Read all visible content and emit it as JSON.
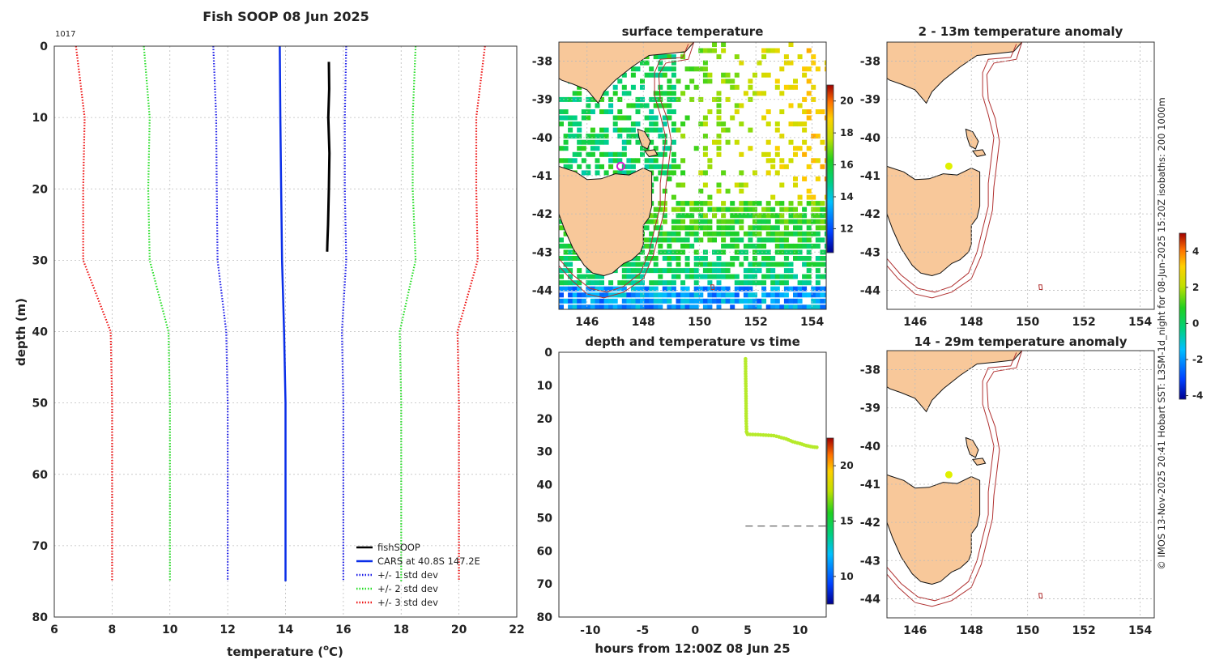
{
  "main_title": "Fish SOOP 08 Jun 2025",
  "profile_id": "1017",
  "colors": {
    "obs": "#000000",
    "mean": "#0a2ee8",
    "std1": "#1a1ae8",
    "std2": "#22dd22",
    "std3": "#ee1111",
    "land": "#f8c89a",
    "coast": "#111111",
    "iso": "#b03030",
    "marker": "#e0f000"
  },
  "chart_data": [
    {
      "type": "line",
      "title": "",
      "xlabel": "temperature (",
      "xlabel_super": "o",
      "xlabel_tail": "C)",
      "ylabel": "depth (m)",
      "xlim": [
        6,
        22
      ],
      "ylim": [
        0,
        80
      ],
      "xticks": [
        "6",
        "8",
        "10",
        "12",
        "14",
        "16",
        "18",
        "20",
        "22"
      ],
      "yticks": [
        "0",
        "10",
        "20",
        "30",
        "40",
        "50",
        "60",
        "70",
        "80"
      ],
      "legend": [
        "fishSOOP",
        "CARS at 40.8S 147.2E",
        "+/- 1 std dev",
        "+/- 2 std dev",
        "+/- 3 std dev"
      ],
      "series": [
        {
          "name": "fishSOOP",
          "points": [
            [
              15.5,
              2.2
            ],
            [
              15.51,
              6
            ],
            [
              15.48,
              10
            ],
            [
              15.52,
              15
            ],
            [
              15.5,
              20
            ],
            [
              15.47,
              25
            ],
            [
              15.45,
              27.5
            ],
            [
              15.44,
              28.8
            ]
          ]
        },
        {
          "name": "CARS",
          "points": [
            [
              13.8,
              0
            ],
            [
              13.82,
              10
            ],
            [
              13.85,
              20
            ],
            [
              13.88,
              30
            ],
            [
              13.95,
              40
            ],
            [
              14.0,
              50
            ],
            [
              14.0,
              60
            ],
            [
              14.0,
              70
            ],
            [
              14.0,
              75
            ]
          ]
        },
        {
          "name": "mean-1sd",
          "points": [
            [
              11.5,
              0
            ],
            [
              11.6,
              10
            ],
            [
              11.62,
              20
            ],
            [
              11.65,
              30
            ],
            [
              11.95,
              40
            ],
            [
              12.0,
              50
            ],
            [
              12.0,
              60
            ],
            [
              12.0,
              70
            ],
            [
              12.0,
              75
            ]
          ]
        },
        {
          "name": "mean+1sd",
          "points": [
            [
              16.1,
              0
            ],
            [
              16.05,
              10
            ],
            [
              16.05,
              20
            ],
            [
              16.1,
              30
            ],
            [
              15.95,
              40
            ],
            [
              16.0,
              50
            ],
            [
              16.0,
              60
            ],
            [
              16.0,
              70
            ],
            [
              16.0,
              75
            ]
          ]
        },
        {
          "name": "mean-2sd",
          "points": [
            [
              9.1,
              0
            ],
            [
              9.3,
              10
            ],
            [
              9.25,
              20
            ],
            [
              9.3,
              30
            ],
            [
              9.95,
              40
            ],
            [
              10.0,
              50
            ],
            [
              10.0,
              60
            ],
            [
              10.0,
              70
            ],
            [
              10.0,
              75
            ]
          ]
        },
        {
          "name": "mean+2sd",
          "points": [
            [
              18.5,
              0
            ],
            [
              18.4,
              10
            ],
            [
              18.4,
              20
            ],
            [
              18.5,
              30
            ],
            [
              17.95,
              40
            ],
            [
              18.0,
              50
            ],
            [
              18.0,
              60
            ],
            [
              18.0,
              70
            ],
            [
              18.0,
              75
            ]
          ]
        },
        {
          "name": "mean-3sd",
          "points": [
            [
              6.75,
              0
            ],
            [
              7.05,
              10
            ],
            [
              7.0,
              20
            ],
            [
              7.0,
              30
            ],
            [
              7.95,
              40
            ],
            [
              8.0,
              50
            ],
            [
              8.0,
              60
            ],
            [
              8.0,
              70
            ],
            [
              8.0,
              75
            ]
          ]
        },
        {
          "name": "mean+3sd",
          "points": [
            [
              20.9,
              0
            ],
            [
              20.6,
              10
            ],
            [
              20.6,
              20
            ],
            [
              20.65,
              30
            ],
            [
              19.95,
              40
            ],
            [
              20.0,
              50
            ],
            [
              20.0,
              60
            ],
            [
              20.0,
              70
            ],
            [
              20.0,
              75
            ]
          ]
        }
      ]
    },
    {
      "type": "heatmap",
      "title": "surface temperature",
      "xlim": [
        145,
        154.5
      ],
      "ylim": [
        -44.5,
        -37.5
      ],
      "xticks": [
        "146",
        "148",
        "150",
        "152",
        "154"
      ],
      "yticks": [
        "-38",
        "-39",
        "-40",
        "-41",
        "-42",
        "-43",
        "-44"
      ],
      "colorbar": {
        "range": [
          10.5,
          21
        ],
        "ticks": [
          "12",
          "14",
          "16",
          "18",
          "20"
        ]
      },
      "marker": {
        "lon": 147.2,
        "lat": -40.75
      }
    },
    {
      "type": "scatter",
      "title": "depth and temperature vs time",
      "xlabel": "hours from 12:00Z 08 Jun 25",
      "xlim": [
        -13,
        12.5
      ],
      "ylim": [
        0,
        80
      ],
      "xticks": [
        "-10",
        "-5",
        "0",
        "5",
        "10"
      ],
      "yticks": [
        "0",
        "10",
        "20",
        "30",
        "40",
        "50",
        "60",
        "70",
        "80"
      ],
      "bottom_depth": 52.5,
      "colorbar": {
        "range": [
          7.5,
          22.5
        ],
        "ticks": [
          "10",
          "15",
          "20"
        ]
      },
      "points": [
        [
          4.8,
          2
        ],
        [
          4.82,
          8
        ],
        [
          4.85,
          14
        ],
        [
          4.87,
          20
        ],
        [
          4.9,
          24
        ],
        [
          5.0,
          24.8
        ],
        [
          6.0,
          24.9
        ],
        [
          7.0,
          25.1
        ],
        [
          7.5,
          25.2
        ],
        [
          8.0,
          25.6
        ],
        [
          8.7,
          26.2
        ],
        [
          9.3,
          27.0
        ],
        [
          10.0,
          27.6
        ],
        [
          10.6,
          28.2
        ],
        [
          11.2,
          28.6
        ],
        [
          11.8,
          28.8
        ]
      ]
    },
    {
      "type": "map",
      "title": "2 - 13m temperature anomaly",
      "xlim": [
        145,
        154.5
      ],
      "ylim": [
        -44.5,
        -37.5
      ],
      "xticks": [
        "146",
        "148",
        "150",
        "152",
        "154"
      ],
      "yticks": [
        "-38",
        "-39",
        "-40",
        "-41",
        "-42",
        "-43",
        "-44"
      ],
      "marker": {
        "lon": 147.2,
        "lat": -40.75
      }
    },
    {
      "type": "map",
      "title": "14 - 29m temperature anomaly",
      "xlim": [
        145,
        154.5
      ],
      "ylim": [
        -44.5,
        -37.5
      ],
      "xticks": [
        "146",
        "148",
        "150",
        "152",
        "154"
      ],
      "yticks": [
        "-38",
        "-39",
        "-40",
        "-41",
        "-42",
        "-43",
        "-44"
      ],
      "marker": {
        "lon": 147.2,
        "lat": -40.75
      },
      "colorbar": {
        "range": [
          -4.2,
          5
        ],
        "ticks": [
          "-4",
          "-2",
          "0",
          "2",
          "4"
        ]
      }
    }
  ],
  "credit": "© IMOS 13-Nov-2025 20:41 Hobart SST: L3SM-1d_night for 08-Jun-2025 15:20Z isobaths: 200  1000m"
}
